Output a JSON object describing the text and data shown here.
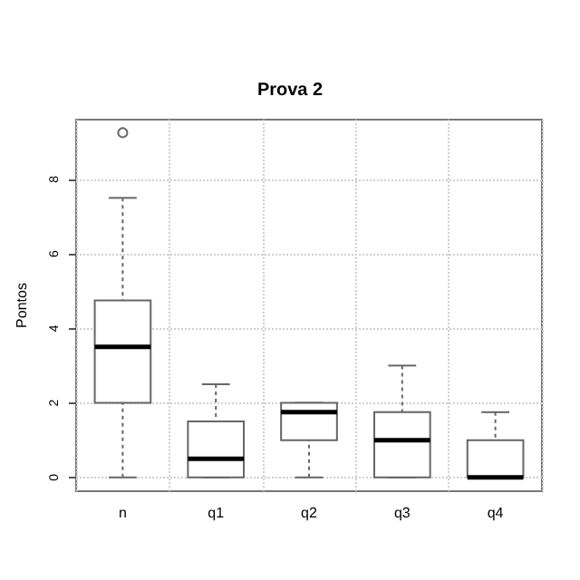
{
  "chart_data": {
    "type": "box",
    "title": "Prova 2",
    "ylabel": "Pontos",
    "categories": [
      "n",
      "q1",
      "q2",
      "q3",
      "q4"
    ],
    "boxes": [
      {
        "low": 0,
        "q1": 2,
        "median": 3.5,
        "q3": 4.75,
        "high": 7.5,
        "outliers": [
          9.25
        ]
      },
      {
        "low": 0,
        "q1": 0,
        "median": 0.5,
        "q3": 1.5,
        "high": 2.5
      },
      {
        "low": 0,
        "q1": 1,
        "median": 1.75,
        "q3": 2,
        "high": 2
      },
      {
        "low": 0,
        "q1": 0,
        "median": 1,
        "q3": 1.75,
        "high": 3
      },
      {
        "low": 0,
        "q1": 0,
        "median": 0,
        "q3": 1,
        "high": 1.75
      }
    ],
    "ylim": [
      -0.37,
      9.6
    ],
    "yticks": [
      0,
      2,
      4,
      6,
      8
    ],
    "grid": true,
    "marker": "circle"
  }
}
